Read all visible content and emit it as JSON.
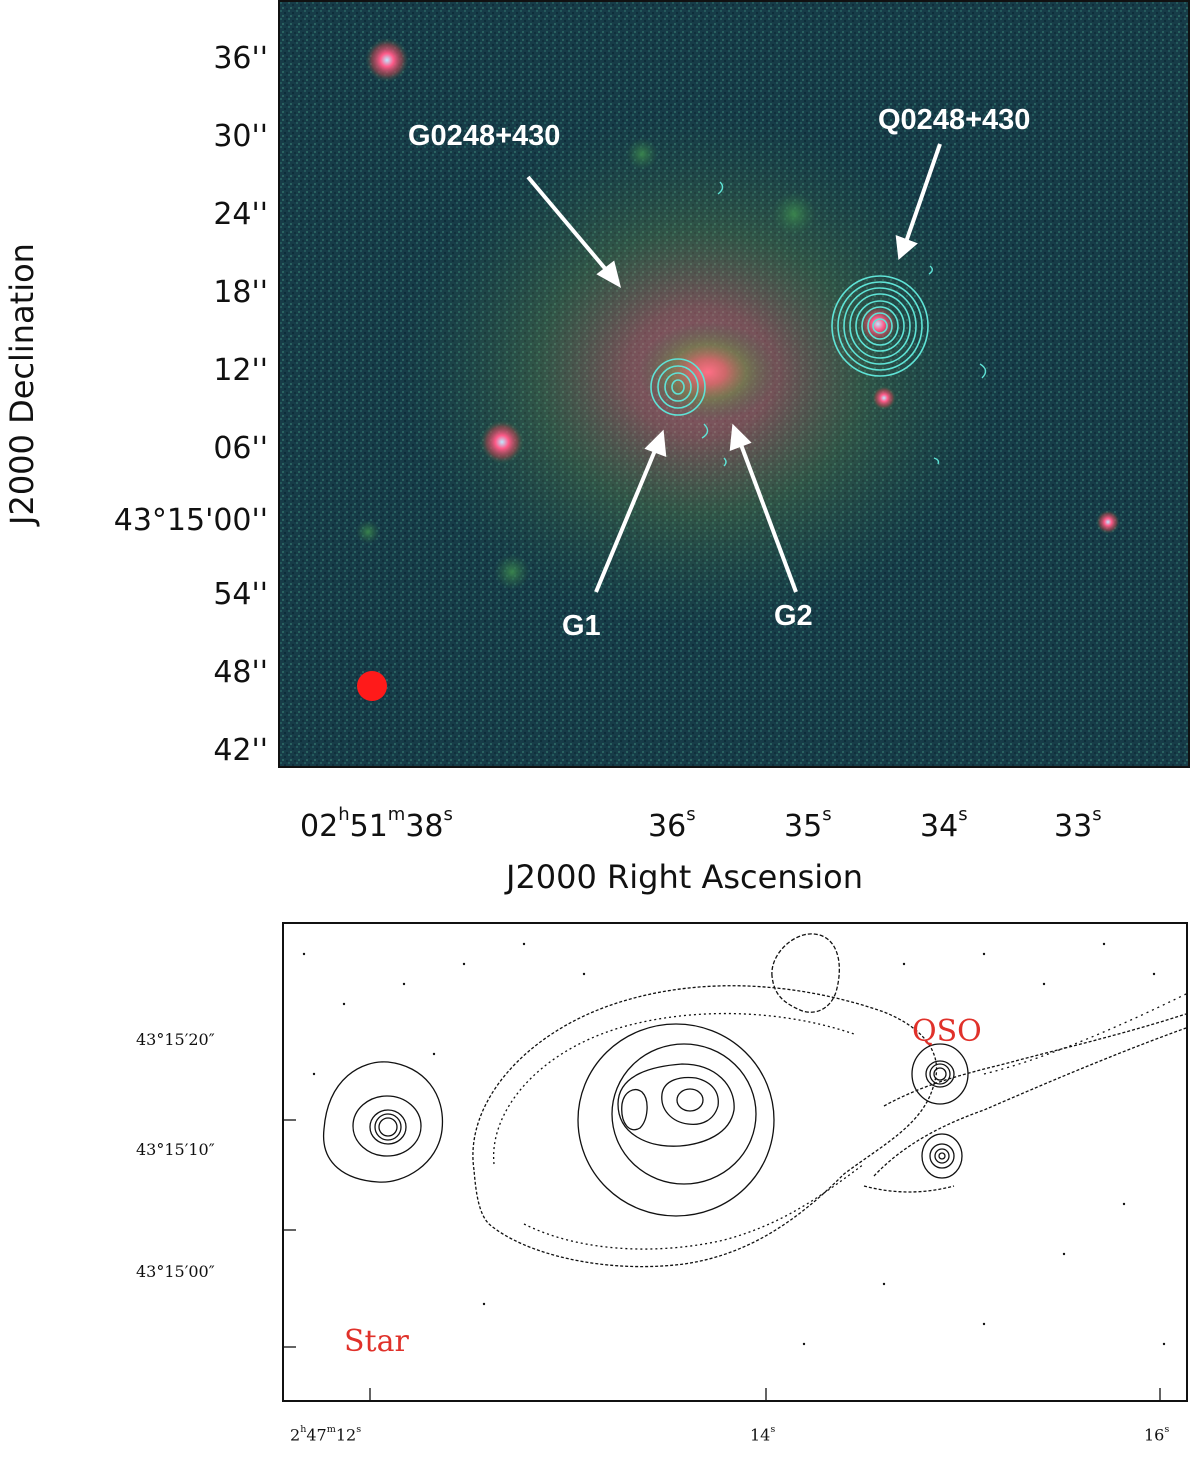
{
  "top_panel": {
    "y_axis_title": "J2000 Declination",
    "x_axis_title": "J2000 Right Ascension",
    "dec_ticks": [
      "36''",
      "30''",
      "24''",
      "18''",
      "12''",
      "06''",
      "43°15'00''",
      "54''",
      "48''",
      "42''"
    ],
    "ra_ticks": [
      {
        "h": "02",
        "m": "51",
        "s": "38"
      },
      {
        "s": "36"
      },
      {
        "s": "35"
      },
      {
        "s": "34"
      },
      {
        "s": "33"
      }
    ],
    "labels": {
      "galaxy": "G0248+430",
      "quasar": "Q0248+430",
      "g1": "G1",
      "g2": "G2"
    },
    "colors": {
      "background": "#163a47",
      "contour": "#5fe3d6",
      "beam": "#ff1a1a",
      "annotation": "#ffffff"
    }
  },
  "bottom_panel": {
    "dec_ticks": [
      "43°15′20″",
      "43°15′10″",
      "43°15′00″"
    ],
    "ra_ticks": [
      {
        "h": "2",
        "m": "47",
        "s": "12"
      },
      {
        "s": "14"
      },
      {
        "s": "16"
      }
    ],
    "labels": {
      "qso": "QSO",
      "star": "Star"
    },
    "colors": {
      "contour": "#111111",
      "label": "#e0312a"
    }
  }
}
